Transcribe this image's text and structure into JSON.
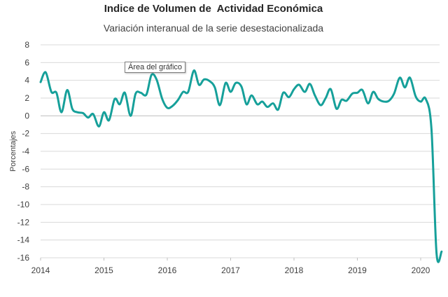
{
  "chart_data": {
    "type": "line",
    "title": "Indice de Volumen de  Actividad Económica",
    "subtitle": "Variación interanual de la serie desestacionalizada",
    "ylabel": "Porcentajes",
    "xlabel": "",
    "ylim": [
      -16,
      8
    ],
    "yticks": [
      8,
      6,
      4,
      2,
      0,
      -2,
      -4,
      -6,
      -8,
      -10,
      -12,
      -14,
      -16
    ],
    "xlim": [
      2014,
      2020.45
    ],
    "xticks": [
      "2014",
      "2015",
      "2016",
      "2017",
      "2018",
      "2019",
      "2020"
    ],
    "grid": "horizontal",
    "series": [
      {
        "color": "#16a09a",
        "x": [
          2014.0,
          2014.08,
          2014.17,
          2014.25,
          2014.33,
          2014.42,
          2014.5,
          2014.58,
          2014.67,
          2014.75,
          2014.83,
          2014.92,
          2015.0,
          2015.08,
          2015.17,
          2015.25,
          2015.33,
          2015.42,
          2015.5,
          2015.58,
          2015.67,
          2015.75,
          2015.83,
          2015.92,
          2016.0,
          2016.08,
          2016.17,
          2016.25,
          2016.33,
          2016.42,
          2016.5,
          2016.58,
          2016.67,
          2016.75,
          2016.83,
          2016.92,
          2017.0,
          2017.08,
          2017.17,
          2017.25,
          2017.33,
          2017.42,
          2017.5,
          2017.58,
          2017.67,
          2017.75,
          2017.83,
          2017.92,
          2018.0,
          2018.08,
          2018.17,
          2018.25,
          2018.33,
          2018.42,
          2018.5,
          2018.58,
          2018.67,
          2018.75,
          2018.83,
          2018.92,
          2019.0,
          2019.08,
          2019.17,
          2019.25,
          2019.33,
          2019.42,
          2019.5,
          2019.58,
          2019.67,
          2019.75,
          2019.83,
          2019.92,
          2020.0,
          2020.08,
          2020.17,
          2020.25,
          2020.33
        ],
        "y": [
          3.8,
          4.9,
          2.7,
          2.6,
          0.4,
          2.9,
          0.8,
          0.4,
          0.3,
          -0.2,
          0.2,
          -1.2,
          0.4,
          -0.5,
          1.9,
          1.3,
          2.6,
          0.0,
          2.5,
          2.6,
          2.4,
          4.6,
          4.1,
          1.9,
          0.9,
          1.1,
          1.8,
          2.7,
          2.7,
          5.1,
          3.5,
          4.1,
          3.9,
          3.2,
          1.2,
          3.7,
          2.7,
          3.7,
          3.3,
          1.3,
          2.3,
          1.3,
          1.6,
          1.0,
          1.4,
          0.7,
          2.6,
          2.1,
          3.0,
          3.5,
          2.7,
          3.6,
          2.3,
          1.2,
          2.0,
          3.0,
          0.8,
          1.8,
          1.7,
          2.5,
          2.6,
          2.9,
          1.4,
          2.7,
          1.9,
          1.6,
          1.7,
          2.5,
          4.3,
          3.2,
          4.3,
          2.2,
          1.6,
          1.9,
          -1.5,
          -15.5,
          -15.3
        ]
      }
    ]
  },
  "overlay": {
    "tooltip_text": "Área del gráfico"
  }
}
